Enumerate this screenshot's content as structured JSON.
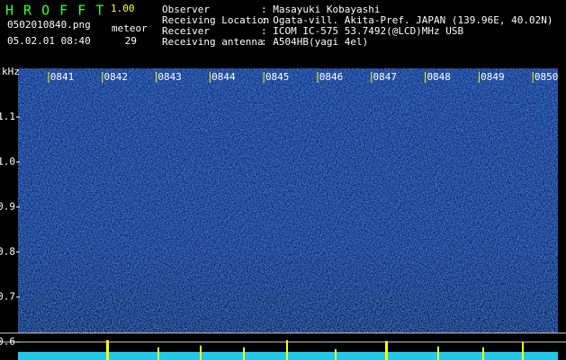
{
  "header": {
    "app_title": "H R O F F T",
    "version": "1.00",
    "filename": "0502010840.png",
    "datetime": "05.02.01 08:40",
    "meteor_label": "meteor",
    "meteor_count": "29"
  },
  "info": [
    {
      "label": "Observer",
      "value": ": Masayuki Kobayashi"
    },
    {
      "label": "Receiving Location",
      "value": ": Ogata-vill. Akita-Pref. JAPAN (139.96E, 40.02N)"
    },
    {
      "label": "Receiver",
      "value": ": ICOM IC-575 53.7492(@LCD)MHz USB"
    },
    {
      "label": "Receiving antenna",
      "value": ": A504HB(yagi 4el)"
    }
  ],
  "axis": {
    "unit": "kHz",
    "freq_labels": [
      "1.1",
      "1.0",
      "0.9",
      "0.8",
      "0.7",
      "0.6"
    ],
    "time_labels": [
      "0841",
      "0842",
      "0843",
      "0844",
      "0845",
      "0846",
      "0847",
      "0848",
      "0849",
      "0850"
    ]
  }
}
